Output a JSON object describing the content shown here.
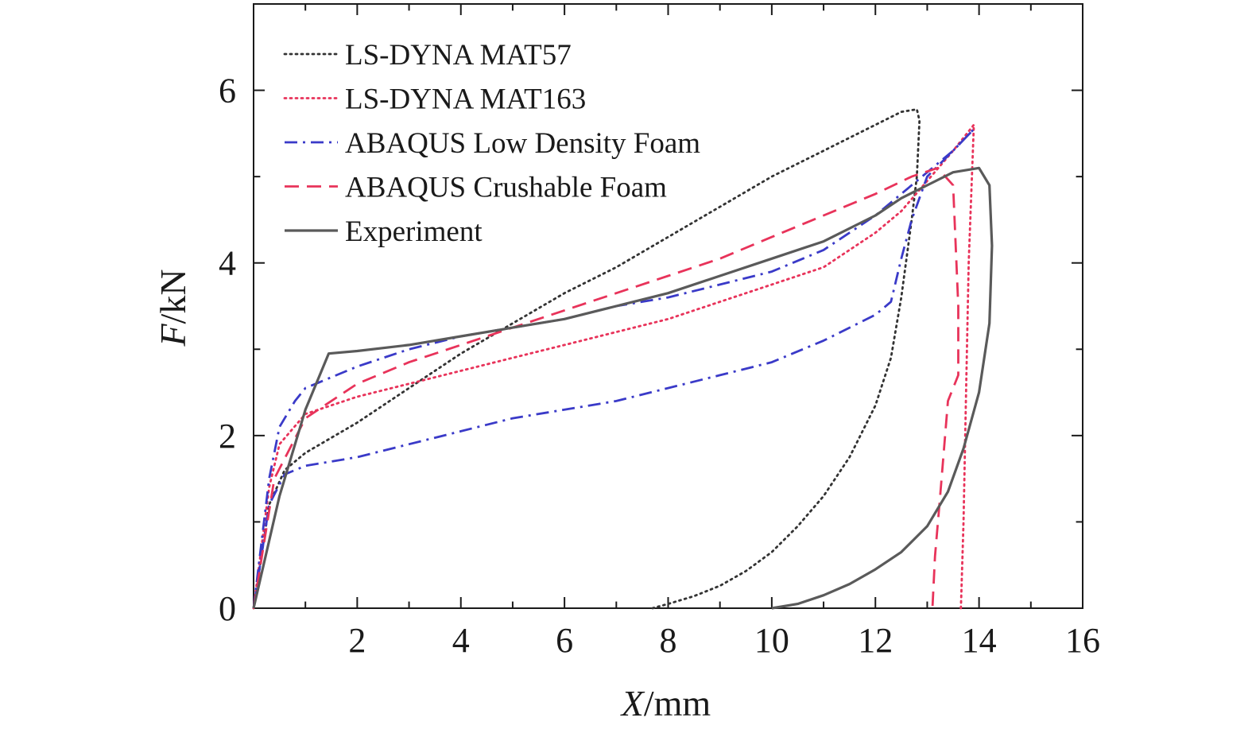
{
  "chart_data": {
    "type": "line",
    "xlabel": {
      "italic": "X",
      "rest": "/mm"
    },
    "ylabel": {
      "italic": "F",
      "rest": "/kN"
    },
    "xlim": [
      0,
      16
    ],
    "ylim": [
      0,
      7
    ],
    "xticks": [
      2,
      4,
      6,
      8,
      10,
      12,
      14,
      16
    ],
    "yticks": [
      0,
      2,
      4,
      6
    ],
    "grid": false,
    "legend_position": "top-left",
    "series": [
      {
        "name": "LS-DYNA MAT57",
        "color": "#333333",
        "style": "dotted",
        "x": [
          0,
          0.3,
          0.6,
          1,
          2,
          3,
          4,
          5,
          6,
          7,
          8,
          9,
          10,
          11,
          12,
          12.5,
          12.8,
          12.85,
          12.8,
          12.7,
          12.5,
          12.3,
          12.0,
          11.5,
          11.0,
          10.5,
          10.0,
          9.5,
          9.0,
          8.5,
          8.0,
          7.7
        ],
        "y": [
          0,
          1.2,
          1.6,
          1.8,
          2.15,
          2.55,
          2.95,
          3.3,
          3.65,
          3.95,
          4.3,
          4.65,
          5.0,
          5.3,
          5.6,
          5.75,
          5.78,
          5.65,
          5.0,
          4.5,
          3.6,
          2.9,
          2.35,
          1.75,
          1.3,
          0.95,
          0.65,
          0.43,
          0.26,
          0.14,
          0.05,
          0
        ]
      },
      {
        "name": "LS-DYNA MAT163",
        "color": "#e8335a",
        "style": "dotted",
        "x": [
          0,
          0.3,
          0.5,
          1,
          2,
          3,
          4,
          5,
          6,
          7,
          8,
          9,
          10,
          11,
          12,
          12.5,
          13,
          13.5,
          13.9,
          13.8,
          13.75,
          13.7,
          13.65
        ],
        "y": [
          0,
          1.4,
          1.9,
          2.25,
          2.45,
          2.6,
          2.75,
          2.9,
          3.05,
          3.2,
          3.35,
          3.55,
          3.75,
          3.95,
          4.35,
          4.6,
          4.95,
          5.3,
          5.6,
          4.0,
          2.5,
          1.0,
          0
        ]
      },
      {
        "name": "ABAQUS Low Density Foam",
        "color": "#3a3ac8",
        "style": "dashdot",
        "x": [
          0,
          0.3,
          0.5,
          0.8,
          1,
          2,
          3,
          4,
          5,
          6,
          7,
          8,
          9,
          10,
          11,
          12,
          12.5,
          13,
          13.5,
          13.9,
          13.5,
          13.0,
          12.7,
          12.5,
          12.3,
          12.0,
          11.0,
          10.0,
          9.0,
          8.0,
          7.0,
          6.0,
          5.0,
          4.0,
          3.0,
          2.0,
          1.0,
          0.6,
          0.3,
          0
        ],
        "y": [
          0,
          1.5,
          2.1,
          2.4,
          2.55,
          2.8,
          3.0,
          3.15,
          3.25,
          3.35,
          3.5,
          3.6,
          3.75,
          3.9,
          4.15,
          4.55,
          4.8,
          5.05,
          5.3,
          5.55,
          5.3,
          5.0,
          4.5,
          4.05,
          3.55,
          3.4,
          3.1,
          2.85,
          2.7,
          2.55,
          2.4,
          2.3,
          2.2,
          2.05,
          1.9,
          1.75,
          1.65,
          1.55,
          1.2,
          0
        ]
      },
      {
        "name": "ABAQUS Crushable Foam",
        "color": "#e8335a",
        "style": "dashed",
        "x": [
          0,
          0.4,
          1,
          2,
          3,
          4,
          5,
          6,
          7,
          8,
          9,
          10,
          11,
          12,
          12.7,
          13.2,
          13.5,
          13.6,
          13.6,
          13.4,
          13.25,
          13.15,
          13.1
        ],
        "y": [
          0,
          1.5,
          2.2,
          2.6,
          2.85,
          3.05,
          3.25,
          3.45,
          3.65,
          3.85,
          4.05,
          4.3,
          4.55,
          4.8,
          5.0,
          5.1,
          4.9,
          3.5,
          2.7,
          2.4,
          1.3,
          0.6,
          0
        ]
      },
      {
        "name": "Experiment",
        "color": "#5a5a5a",
        "style": "solid",
        "x": [
          0,
          0.5,
          1,
          1.45,
          2,
          3,
          4,
          5,
          6,
          7,
          8,
          9,
          10,
          11,
          12,
          12.5,
          13,
          13.5,
          14,
          14.2,
          14.25,
          14.2,
          14.0,
          13.7,
          13.4,
          13.0,
          12.5,
          12.0,
          11.5,
          11.0,
          10.5,
          10.0
        ],
        "y": [
          0,
          1.3,
          2.3,
          2.95,
          2.98,
          3.05,
          3.15,
          3.25,
          3.35,
          3.5,
          3.65,
          3.85,
          4.05,
          4.25,
          4.55,
          4.75,
          4.9,
          5.05,
          5.1,
          4.9,
          4.2,
          3.3,
          2.5,
          1.85,
          1.35,
          0.95,
          0.65,
          0.45,
          0.28,
          0.15,
          0.05,
          0
        ]
      }
    ]
  }
}
